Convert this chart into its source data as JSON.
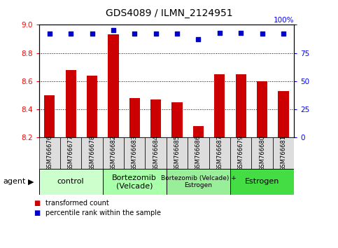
{
  "title": "GDS4089 / ILMN_2124951",
  "samples": [
    "GSM766676",
    "GSM766677",
    "GSM766678",
    "GSM766682",
    "GSM766683",
    "GSM766684",
    "GSM766685",
    "GSM766686",
    "GSM766687",
    "GSM766679",
    "GSM766680",
    "GSM766681"
  ],
  "transformed_count": [
    8.5,
    8.68,
    8.64,
    8.93,
    8.48,
    8.47,
    8.45,
    8.28,
    8.65,
    8.65,
    8.6,
    8.53
  ],
  "percentile_rank": [
    92,
    92,
    92,
    95,
    92,
    92,
    92,
    87,
    93,
    93,
    92,
    92
  ],
  "ylim_left": [
    8.2,
    9.0
  ],
  "ylim_right": [
    0,
    100
  ],
  "yticks_left": [
    8.2,
    8.4,
    8.6,
    8.8,
    9.0
  ],
  "yticks_right": [
    0,
    25,
    50,
    75,
    100
  ],
  "groups": [
    {
      "label": "control",
      "start": 0,
      "end": 3,
      "color": "#ccffcc",
      "fontsize": 8
    },
    {
      "label": "Bortezomib\n(Velcade)",
      "start": 3,
      "end": 6,
      "color": "#aaffaa",
      "fontsize": 8
    },
    {
      "label": "Bortezomib (Velcade) +\nEstrogen",
      "start": 6,
      "end": 9,
      "color": "#99ee99",
      "fontsize": 6.5
    },
    {
      "label": "Estrogen",
      "start": 9,
      "end": 12,
      "color": "#44dd44",
      "fontsize": 8
    }
  ],
  "bar_color": "#cc0000",
  "dot_color": "#0000cc",
  "bar_width": 0.5,
  "grid_color": "#000000",
  "legend_items": [
    {
      "label": "transformed count",
      "color": "#cc0000"
    },
    {
      "label": "percentile rank within the sample",
      "color": "#0000cc"
    }
  ],
  "agent_label": "agent"
}
